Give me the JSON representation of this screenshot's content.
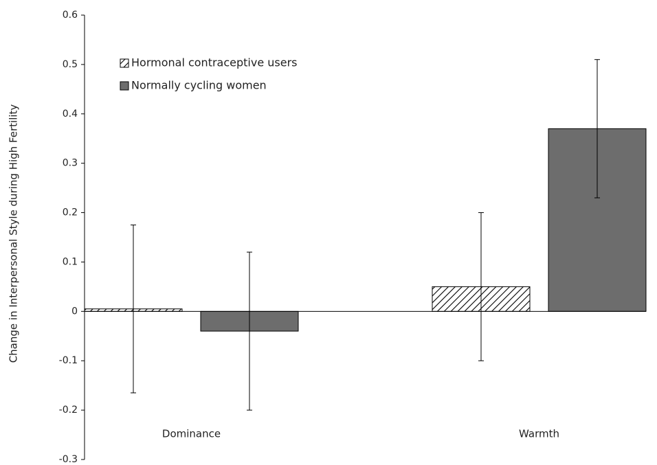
{
  "chart_data": {
    "type": "bar",
    "y_label": "Change in Interpersonal Style during High Fertility",
    "categories": [
      "Dominance",
      "Warmth"
    ],
    "series": [
      {
        "name": "Hormonal contraceptive users",
        "color": "#000000",
        "pattern": "hatch",
        "values": [
          0.005,
          0.05
        ],
        "errors": [
          0.17,
          0.15
        ]
      },
      {
        "name": "Normally cycling women",
        "color": "#6d6d6d",
        "values": [
          -0.04,
          0.37
        ],
        "errors": [
          0.16,
          0.14
        ]
      }
    ],
    "ylim": [
      -0.3,
      0.6
    ],
    "yticks": [
      -0.3,
      -0.2,
      -0.1,
      0,
      0.1,
      0.2,
      0.3,
      0.4,
      0.5,
      0.6
    ],
    "legend": "upper left",
    "grid": false
  }
}
